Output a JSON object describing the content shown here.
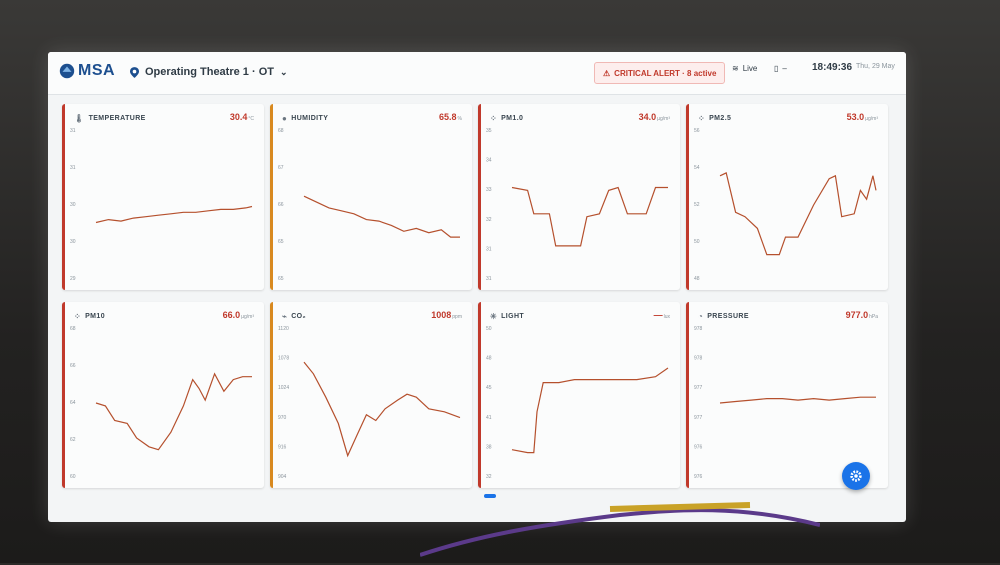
{
  "header": {
    "logo_text": "MSA",
    "location": "Operating Theatre 1 · OT",
    "alert": "CRITICAL ALERT · 8 active",
    "live": "Live",
    "battery": "–",
    "time": "18:49:36",
    "date": "Thu, 29 May"
  },
  "colors": {
    "accent_red": "#c0392b",
    "accent_orange": "#d8891f",
    "line": "#b5502d",
    "fab": "#1a73e8"
  },
  "cards": [
    {
      "title": "TEMPERATURE",
      "icon": "thermometer-icon",
      "value": "30.4",
      "unit": "°C",
      "accent": "#c0392b",
      "yticks": [
        "31",
        "31",
        "30",
        "30",
        "29"
      ],
      "points": [
        [
          0,
          0.62
        ],
        [
          0.08,
          0.6
        ],
        [
          0.16,
          0.61
        ],
        [
          0.24,
          0.59
        ],
        [
          0.32,
          0.58
        ],
        [
          0.4,
          0.57
        ],
        [
          0.48,
          0.56
        ],
        [
          0.56,
          0.55
        ],
        [
          0.64,
          0.55
        ],
        [
          0.72,
          0.54
        ],
        [
          0.8,
          0.53
        ],
        [
          0.88,
          0.53
        ],
        [
          0.96,
          0.52
        ],
        [
          1,
          0.51
        ]
      ]
    },
    {
      "title": "HUMIDITY",
      "icon": "drop-icon",
      "value": "65.8",
      "unit": "%",
      "accent": "#d8891f",
      "yticks": [
        "68",
        "67",
        "66",
        "65",
        "65"
      ],
      "points": [
        [
          0,
          0.44
        ],
        [
          0.08,
          0.48
        ],
        [
          0.16,
          0.52
        ],
        [
          0.24,
          0.54
        ],
        [
          0.32,
          0.56
        ],
        [
          0.4,
          0.6
        ],
        [
          0.48,
          0.61
        ],
        [
          0.56,
          0.64
        ],
        [
          0.64,
          0.68
        ],
        [
          0.72,
          0.66
        ],
        [
          0.8,
          0.69
        ],
        [
          0.88,
          0.67
        ],
        [
          0.94,
          0.72
        ],
        [
          1,
          0.72
        ]
      ]
    },
    {
      "title": "PM1.0",
      "icon": "dot-icon",
      "value": "34.0",
      "unit": "µg/m³",
      "accent": "#c0392b",
      "yticks": [
        "35",
        "34",
        "33",
        "32",
        "31",
        "31"
      ],
      "points": [
        [
          0,
          0.38
        ],
        [
          0.1,
          0.4
        ],
        [
          0.14,
          0.56
        ],
        [
          0.24,
          0.56
        ],
        [
          0.28,
          0.78
        ],
        [
          0.44,
          0.78
        ],
        [
          0.48,
          0.58
        ],
        [
          0.56,
          0.56
        ],
        [
          0.62,
          0.4
        ],
        [
          0.68,
          0.38
        ],
        [
          0.74,
          0.56
        ],
        [
          0.86,
          0.56
        ],
        [
          0.92,
          0.38
        ],
        [
          1,
          0.38
        ]
      ]
    },
    {
      "title": "PM2.5",
      "icon": "dot-icon",
      "value": "53.0",
      "unit": "µg/m³",
      "accent": "#c0392b",
      "yticks": [
        "56",
        "54",
        "52",
        "50",
        "48"
      ],
      "points": [
        [
          0,
          0.3
        ],
        [
          0.04,
          0.28
        ],
        [
          0.1,
          0.55
        ],
        [
          0.16,
          0.58
        ],
        [
          0.24,
          0.66
        ],
        [
          0.3,
          0.84
        ],
        [
          0.38,
          0.84
        ],
        [
          0.42,
          0.72
        ],
        [
          0.5,
          0.72
        ],
        [
          0.6,
          0.5
        ],
        [
          0.7,
          0.32
        ],
        [
          0.74,
          0.3
        ],
        [
          0.78,
          0.58
        ],
        [
          0.86,
          0.56
        ],
        [
          0.9,
          0.4
        ],
        [
          0.94,
          0.46
        ],
        [
          0.98,
          0.3
        ],
        [
          1,
          0.4
        ]
      ]
    },
    {
      "title": "PM10",
      "icon": "dot-icon",
      "value": "66.0",
      "unit": "µg/m³",
      "accent": "#c0392b",
      "yticks": [
        "68",
        "66",
        "64",
        "62",
        "60"
      ],
      "points": [
        [
          0,
          0.5
        ],
        [
          0.06,
          0.52
        ],
        [
          0.12,
          0.62
        ],
        [
          0.2,
          0.64
        ],
        [
          0.26,
          0.74
        ],
        [
          0.34,
          0.8
        ],
        [
          0.4,
          0.82
        ],
        [
          0.48,
          0.7
        ],
        [
          0.56,
          0.52
        ],
        [
          0.62,
          0.34
        ],
        [
          0.66,
          0.4
        ],
        [
          0.7,
          0.48
        ],
        [
          0.76,
          0.3
        ],
        [
          0.82,
          0.42
        ],
        [
          0.88,
          0.34
        ],
        [
          0.94,
          0.32
        ],
        [
          1,
          0.32
        ]
      ]
    },
    {
      "title": "CO₂",
      "icon": "co2-icon",
      "value": "1008",
      "unit": "ppm",
      "accent": "#d8891f",
      "yticks": [
        "1120",
        "1078",
        "1024",
        "970",
        "916",
        "904"
      ],
      "points": [
        [
          0,
          0.22
        ],
        [
          0.06,
          0.3
        ],
        [
          0.14,
          0.46
        ],
        [
          0.22,
          0.64
        ],
        [
          0.28,
          0.86
        ],
        [
          0.34,
          0.72
        ],
        [
          0.4,
          0.58
        ],
        [
          0.46,
          0.62
        ],
        [
          0.52,
          0.54
        ],
        [
          0.6,
          0.48
        ],
        [
          0.66,
          0.44
        ],
        [
          0.72,
          0.46
        ],
        [
          0.8,
          0.54
        ],
        [
          0.9,
          0.56
        ],
        [
          1,
          0.6
        ]
      ]
    },
    {
      "title": "LIGHT",
      "icon": "sun-icon",
      "value": "—",
      "unit": "lux",
      "accent": "#c0392b",
      "yticks": [
        "50",
        "48",
        "45",
        "41",
        "38",
        "32"
      ],
      "points": [
        [
          0,
          0.82
        ],
        [
          0.1,
          0.84
        ],
        [
          0.14,
          0.84
        ],
        [
          0.16,
          0.56
        ],
        [
          0.2,
          0.36
        ],
        [
          0.3,
          0.36
        ],
        [
          0.4,
          0.34
        ],
        [
          0.6,
          0.34
        ],
        [
          0.8,
          0.34
        ],
        [
          0.92,
          0.32
        ],
        [
          1,
          0.26
        ]
      ]
    },
    {
      "title": "PRESSURE",
      "icon": "gauge-icon",
      "value": "977.0",
      "unit": "hPa",
      "accent": "#c0392b",
      "yticks": [
        "978",
        "978",
        "977",
        "977",
        "976",
        "976"
      ],
      "points": [
        [
          0,
          0.5
        ],
        [
          0.1,
          0.49
        ],
        [
          0.2,
          0.48
        ],
        [
          0.3,
          0.47
        ],
        [
          0.4,
          0.47
        ],
        [
          0.5,
          0.48
        ],
        [
          0.6,
          0.47
        ],
        [
          0.7,
          0.48
        ],
        [
          0.8,
          0.47
        ],
        [
          0.9,
          0.46
        ],
        [
          1,
          0.46
        ]
      ]
    }
  ]
}
